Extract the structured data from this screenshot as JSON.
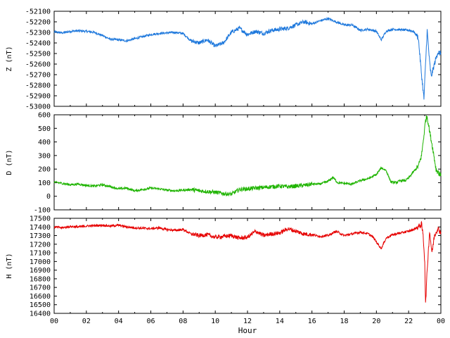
{
  "chart_data": [
    {
      "type": "line",
      "ylabel": "Z (nT)",
      "ylim": [
        -53000,
        -52100
      ],
      "yticks": [
        -52100,
        -52200,
        -52300,
        -52400,
        -52500,
        -52600,
        -52700,
        -52800,
        -52900,
        -53000
      ],
      "xlim": [
        0,
        24
      ],
      "color": "#1e78dc",
      "series": [
        {
          "x": [
            0,
            0.5,
            1,
            1.5,
            2,
            2.5,
            3,
            3.5,
            4,
            4.5,
            5,
            5.5,
            6,
            6.5,
            7,
            7.5,
            8,
            8.5,
            9,
            9.5,
            10,
            10.5,
            11,
            11.5,
            12,
            12.5,
            13,
            13.5,
            14,
            14.5,
            15,
            15.5,
            16,
            16.5,
            17,
            17.5,
            18,
            18.5,
            19,
            19.5,
            20,
            20.3,
            20.6,
            21,
            21.5,
            22,
            22.3,
            22.6,
            22.8,
            22.95,
            23.05,
            23.15,
            23.3,
            23.4,
            23.6,
            23.8,
            24
          ],
          "values": [
            -52295,
            -52305,
            -52290,
            -52285,
            -52290,
            -52300,
            -52330,
            -52365,
            -52370,
            -52380,
            -52360,
            -52340,
            -52320,
            -52310,
            -52305,
            -52300,
            -52310,
            -52380,
            -52400,
            -52370,
            -52430,
            -52400,
            -52300,
            -52260,
            -52320,
            -52290,
            -52310,
            -52280,
            -52270,
            -52260,
            -52230,
            -52200,
            -52220,
            -52190,
            -52170,
            -52200,
            -52230,
            -52230,
            -52280,
            -52270,
            -52290,
            -52370,
            -52290,
            -52270,
            -52275,
            -52280,
            -52290,
            -52350,
            -52700,
            -52930,
            -52600,
            -52280,
            -52580,
            -52720,
            -52600,
            -52490,
            -52500
          ]
        }
      ]
    },
    {
      "type": "line",
      "ylabel": "D (nT)",
      "ylim": [
        -100,
        600
      ],
      "yticks": [
        600,
        500,
        400,
        300,
        200,
        100,
        0,
        -100
      ],
      "xlim": [
        0,
        24
      ],
      "color": "#1eb400",
      "series": [
        {
          "x": [
            0,
            0.5,
            1,
            1.5,
            2,
            2.5,
            3,
            3.5,
            4,
            4.5,
            5,
            5.5,
            6,
            6.5,
            7,
            7.5,
            8,
            8.5,
            9,
            9.5,
            10,
            10.5,
            11,
            11.5,
            12,
            12.5,
            13,
            13.5,
            14,
            14.5,
            15,
            15.5,
            16,
            16.5,
            17,
            17.3,
            17.6,
            18,
            18.5,
            19,
            19.5,
            20,
            20.3,
            20.6,
            20.9,
            21.2,
            21.5,
            21.8,
            22,
            22.3,
            22.6,
            22.8,
            22.95,
            23.05,
            23.15,
            23.3,
            23.5,
            23.7,
            24
          ],
          "values": [
            105,
            95,
            85,
            90,
            80,
            75,
            85,
            70,
            55,
            60,
            40,
            50,
            60,
            55,
            45,
            40,
            45,
            50,
            40,
            35,
            30,
            20,
            15,
            50,
            55,
            60,
            65,
            70,
            75,
            70,
            75,
            80,
            90,
            90,
            110,
            140,
            100,
            95,
            90,
            115,
            130,
            160,
            210,
            190,
            105,
            100,
            115,
            115,
            135,
            180,
            220,
            300,
            450,
            560,
            590,
            480,
            350,
            200,
            150
          ]
        }
      ]
    },
    {
      "type": "line",
      "ylabel": "H (nT)",
      "ylim": [
        16400,
        17500
      ],
      "yticks": [
        17500,
        17400,
        17300,
        17200,
        17100,
        17000,
        16900,
        16800,
        16700,
        16600,
        16500,
        16400
      ],
      "xlim": [
        0,
        24
      ],
      "xticks": [
        "00",
        "02",
        "04",
        "06",
        "08",
        "10",
        "12",
        "14",
        "16",
        "18",
        "20",
        "22",
        "00"
      ],
      "xlabel": "Hour",
      "color": "#e60000",
      "series": [
        {
          "x": [
            0,
            0.5,
            1,
            1.5,
            2,
            2.5,
            3,
            3.5,
            4,
            4.5,
            5,
            5.5,
            6,
            6.5,
            7,
            7.5,
            8,
            8.5,
            9,
            9.5,
            10,
            10.5,
            11,
            11.5,
            12,
            12.5,
            13,
            13.5,
            14,
            14.5,
            15,
            15.5,
            16,
            16.5,
            17,
            17.5,
            18,
            18.5,
            19,
            19.5,
            19.8,
            20.1,
            20.3,
            20.6,
            21,
            21.5,
            22,
            22.3,
            22.6,
            22.8,
            22.9,
            23.0,
            23.05,
            23.15,
            23.3,
            23.45,
            23.6,
            23.8,
            24
          ],
          "values": [
            17400,
            17390,
            17405,
            17400,
            17410,
            17415,
            17420,
            17410,
            17420,
            17400,
            17390,
            17385,
            17380,
            17390,
            17370,
            17360,
            17370,
            17320,
            17300,
            17310,
            17280,
            17290,
            17300,
            17270,
            17280,
            17350,
            17300,
            17320,
            17330,
            17380,
            17350,
            17320,
            17310,
            17290,
            17300,
            17350,
            17300,
            17320,
            17340,
            17320,
            17280,
            17200,
            17150,
            17270,
            17310,
            17330,
            17350,
            17370,
            17400,
            17430,
            17300,
            17000,
            16500,
            16900,
            17350,
            17100,
            17300,
            17380,
            17340
          ]
        }
      ]
    }
  ]
}
